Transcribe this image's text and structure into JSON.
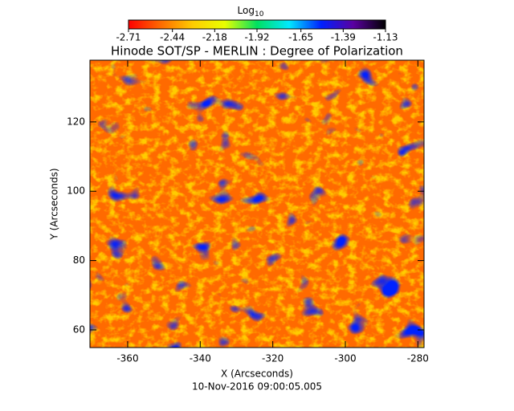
{
  "chart_data": {
    "type": "heatmap",
    "title": "Hinode SOT/SP - MERLIN : Degree of Polarization",
    "x_label": "X (Arcseconds)",
    "y_label": "Y (Arcseconds)",
    "footer": "10-Nov-2016 09:00:05.005",
    "xlim": [
      -370.4,
      -278.3
    ],
    "ylim": [
      54.9,
      137.8
    ],
    "xticks": [
      -360,
      -340,
      -320,
      -300,
      -280
    ],
    "yticks": [
      60,
      80,
      100,
      120
    ],
    "colorbar": {
      "label": "Log",
      "label_sub": "10",
      "lim": [
        -2.71,
        -1.13
      ],
      "ticks": [
        -2.71,
        -2.44,
        -2.18,
        -1.92,
        -1.65,
        -1.39,
        -1.13
      ],
      "colors": [
        "#ff0000",
        "#ff6a00",
        "#ffcc00",
        "#e8ff00",
        "#00e060",
        "#00e8ff",
        "#0020ff",
        "#5a00a0",
        "#000000"
      ]
    }
  }
}
